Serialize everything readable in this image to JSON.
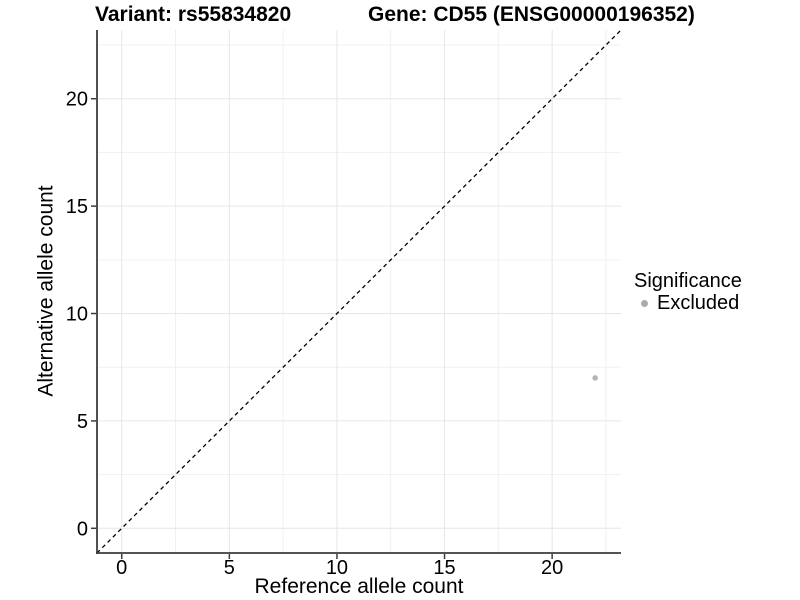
{
  "chart_data": {
    "type": "scatter",
    "title_parts": [
      "Variant: rs55834820",
      "Gene: CD55 (ENSG00000196352)"
    ],
    "xlabel": "Reference allele count",
    "ylabel": "Alternative allele count",
    "xlim": [
      -1.15,
      23.2
    ],
    "ylim": [
      -1.15,
      23.2
    ],
    "xticks": [
      0,
      5,
      10,
      15,
      20
    ],
    "yticks": [
      0,
      5,
      10,
      15,
      20
    ],
    "minor_xticks": [
      2.5,
      7.5,
      12.5,
      17.5,
      22.5
    ],
    "minor_yticks": [
      2.5,
      7.5,
      12.5,
      17.5,
      22.5
    ],
    "grid": "major+minor",
    "identity_line": {
      "style": "dashed",
      "slope": 1,
      "intercept": 0,
      "color": "#000000"
    },
    "series": [
      {
        "name": "Excluded",
        "color": "#b5b5b5",
        "points": [
          {
            "x": 22,
            "y": 7
          }
        ]
      }
    ],
    "legend": {
      "title": "Significance",
      "position": "right",
      "items": [
        {
          "label": "Excluded",
          "color": "#aaaaaa"
        }
      ]
    },
    "colors": {
      "axis_line": "#3c3c3c",
      "tick_mark": "#3c3c3c",
      "grid_major": "#e6e6e6",
      "grid_minor": "#f0f0f0",
      "text": "#000000"
    }
  }
}
